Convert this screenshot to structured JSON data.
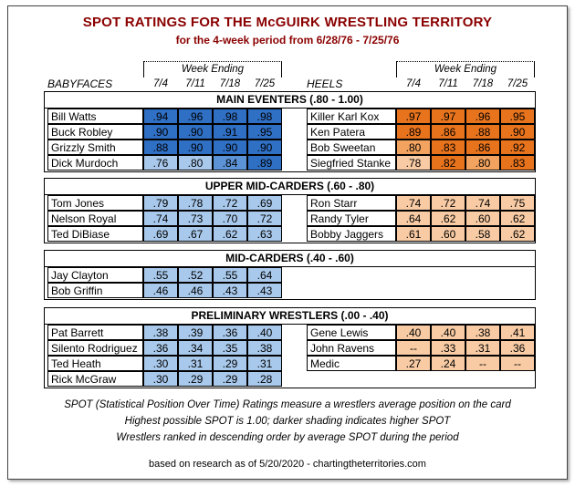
{
  "title": "SPOT RATINGS FOR THE McGUIRK WRESTLING TERRITORY",
  "subtitle": "for the 4-week period from 6/28/76 - 7/25/76",
  "week_ending_label": "Week Ending",
  "weeks": [
    "7/4",
    "7/11",
    "7/18",
    "7/25"
  ],
  "babyfaces_label": "BABYFACES",
  "heels_label": "HEELS",
  "colors": {
    "blue_dark": "#2f6fc4",
    "blue_mid": "#5b93d6",
    "blue_light": "#a9c9ec",
    "orange_dark": "#e8731d",
    "orange_mid": "#f2a35f",
    "orange_light": "#f8cba4",
    "title": "#8b0000"
  },
  "sections": [
    {
      "title": "MAIN EVENTERS (.80 - 1.00)",
      "babyfaces": [
        {
          "name": "Bill Watts",
          "values": [
            ".94",
            ".96",
            ".98",
            ".98"
          ]
        },
        {
          "name": "Buck Robley",
          "values": [
            ".90",
            ".90",
            ".91",
            ".95"
          ]
        },
        {
          "name": "Grizzly Smith",
          "values": [
            ".88",
            ".90",
            ".90",
            ".90"
          ]
        },
        {
          "name": "Dick Murdoch",
          "values": [
            ".76",
            ".80",
            ".84",
            ".89"
          ]
        }
      ],
      "heels": [
        {
          "name": "Killer Karl Kox",
          "values": [
            ".97",
            ".97",
            ".96",
            ".95"
          ]
        },
        {
          "name": "Ken Patera",
          "values": [
            ".89",
            ".86",
            ".88",
            ".90"
          ]
        },
        {
          "name": "Bob Sweetan",
          "values": [
            ".80",
            ".83",
            ".86",
            ".92"
          ]
        },
        {
          "name": "Siegfried Stanke",
          "values": [
            ".78",
            ".82",
            ".80",
            ".83"
          ]
        }
      ]
    },
    {
      "title": "UPPER MID-CARDERS (.60 - .80)",
      "babyfaces": [
        {
          "name": "Tom Jones",
          "values": [
            ".79",
            ".78",
            ".72",
            ".69"
          ]
        },
        {
          "name": "Nelson Royal",
          "values": [
            ".74",
            ".73",
            ".70",
            ".72"
          ]
        },
        {
          "name": "Ted DiBiase",
          "values": [
            ".69",
            ".67",
            ".62",
            ".63"
          ]
        }
      ],
      "heels": [
        {
          "name": "Ron Starr",
          "values": [
            ".74",
            ".72",
            ".74",
            ".75"
          ]
        },
        {
          "name": "Randy Tyler",
          "values": [
            ".64",
            ".62",
            ".60",
            ".62"
          ]
        },
        {
          "name": "Bobby Jaggers",
          "values": [
            ".61",
            ".60",
            ".58",
            ".62"
          ]
        }
      ]
    },
    {
      "title": "MID-CARDERS (.40 - .60)",
      "babyfaces": [
        {
          "name": "Jay Clayton",
          "values": [
            ".55",
            ".52",
            ".55",
            ".64"
          ]
        },
        {
          "name": "Bob Griffin",
          "values": [
            ".46",
            ".46",
            ".43",
            ".43"
          ]
        }
      ],
      "heels": []
    },
    {
      "title": "PRELIMINARY WRESTLERS (.00 - .40)",
      "babyfaces": [
        {
          "name": "Pat Barrett",
          "values": [
            ".38",
            ".39",
            ".36",
            ".40"
          ]
        },
        {
          "name": "Silento Rodriguez",
          "values": [
            ".36",
            ".34",
            ".35",
            ".38"
          ]
        },
        {
          "name": "Ted Heath",
          "values": [
            ".30",
            ".31",
            ".29",
            ".31"
          ]
        },
        {
          "name": "Rick McGraw",
          "values": [
            ".30",
            ".29",
            ".29",
            ".28"
          ]
        }
      ],
      "heels": [
        {
          "name": "Gene Lewis",
          "values": [
            ".40",
            ".40",
            ".38",
            ".41"
          ]
        },
        {
          "name": "John Ravens",
          "values": [
            "--",
            ".33",
            ".31",
            ".36"
          ]
        },
        {
          "name": "Medic",
          "values": [
            ".27",
            ".24",
            "--",
            "--"
          ]
        }
      ]
    }
  ],
  "footnotes": [
    "SPOT (Statistical Position Over Time) Ratings measure a wrestlers average position on the card",
    "Highest possible SPOT is 1.00; darker shading indicates higher SPOT",
    "Wrestlers ranked in descending order by average SPOT during the period"
  ],
  "credit": "based on research as of 5/20/2020   -   chartingtheterritories.com"
}
